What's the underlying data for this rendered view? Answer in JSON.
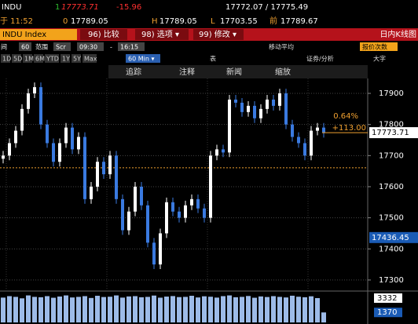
{
  "header": {
    "ticker": "INDU",
    "last_flag": "1",
    "last": "17773.71",
    "change": "-15.96",
    "bid_ask": "17772.07 / 17775.49",
    "time": "于 11:52",
    "open_flag": "0",
    "open": "17789.05",
    "high_label": "H",
    "high": "17789.05",
    "low_label": "L",
    "low": "17703.55",
    "prev_label": "前",
    "prev": "17789.67"
  },
  "menu": {
    "security": "INDU Index",
    "compare": "96) 比较",
    "options": "98) 选项 ▾",
    "modify": "99) 修改 ▾",
    "chart_name": "日内K线图"
  },
  "settings": {
    "interval_label": "间",
    "interval": "60",
    "range_label": "范围",
    "range_type": "Scr",
    "start": "09:30",
    "dash": "-",
    "end": "16:15",
    "moving_avg": "移动平均",
    "tick_count": "报价次数"
  },
  "periods": [
    "1D",
    "5D",
    "1M",
    "6M",
    "YTD",
    "1Y",
    "5Y",
    "Max"
  ],
  "frequency": "60 Min ▾",
  "table": "表",
  "analysis": "证券/分析",
  "large_font": "大字",
  "toolbar": [
    "追踪",
    "注释",
    "新闻",
    "缩放"
  ],
  "chart_data": {
    "type": "candlestick",
    "open": [
      17690,
      17700,
      17740,
      17780,
      17850,
      17900,
      17920,
      17800,
      17740,
      17680,
      17740,
      17790,
      17720,
      17760,
      17560,
      17600,
      17680,
      17640,
      17700,
      17560,
      17460,
      17520,
      17600,
      17540,
      17420,
      17350,
      17450,
      17550,
      17520,
      17500,
      17540,
      17560,
      17530,
      17500,
      17700,
      17720,
      17710,
      17880,
      17870,
      17840,
      17860,
      17820,
      17850,
      17880,
      17860,
      17900,
      17800,
      17760,
      17740,
      17700,
      17780,
      17790
    ],
    "high": [
      17715,
      17755,
      17795,
      17865,
      17915,
      17935,
      17935,
      17815,
      17755,
      17755,
      17805,
      17805,
      17775,
      17775,
      17615,
      17695,
      17695,
      17715,
      17715,
      17575,
      17535,
      17615,
      17615,
      17555,
      17435,
      17465,
      17565,
      17565,
      17535,
      17555,
      17575,
      17575,
      17545,
      17715,
      17735,
      17735,
      17895,
      17895,
      17885,
      17875,
      17875,
      17865,
      17895,
      17895,
      17915,
      17915,
      17815,
      17775,
      17755,
      17795,
      17805,
      17805
    ],
    "low": [
      17675,
      17685,
      17725,
      17765,
      17835,
      17885,
      17785,
      17725,
      17665,
      17665,
      17725,
      17705,
      17705,
      17545,
      17545,
      17585,
      17625,
      17625,
      17545,
      17445,
      17445,
      17505,
      17525,
      17405,
      17335,
      17335,
      17435,
      17505,
      17485,
      17485,
      17525,
      17515,
      17485,
      17485,
      17685,
      17695,
      17695,
      17855,
      17825,
      17825,
      17805,
      17805,
      17835,
      17845,
      17845,
      17785,
      17745,
      17725,
      17685,
      17685,
      17765,
      17758
    ],
    "close": [
      17700,
      17740,
      17780,
      17850,
      17900,
      17920,
      17800,
      17740,
      17680,
      17740,
      17790,
      17720,
      17760,
      17560,
      17600,
      17680,
      17640,
      17700,
      17560,
      17460,
      17520,
      17600,
      17540,
      17420,
      17350,
      17450,
      17550,
      17520,
      17500,
      17540,
      17560,
      17530,
      17500,
      17700,
      17720,
      17710,
      17880,
      17870,
      17840,
      17860,
      17820,
      17850,
      17880,
      17860,
      17900,
      17800,
      17760,
      17740,
      17700,
      17780,
      17790,
      17773.71
    ],
    "up_color": "#ffffff",
    "down_color": "#3a7ae0",
    "ylim": [
      17267,
      17948
    ],
    "yticks": [
      17300,
      17400,
      17500,
      17600,
      17700,
      17800,
      17900
    ],
    "grid": true,
    "ref_line": {
      "value": 17660.71,
      "color": "#f0a030"
    },
    "change_pct": "0.64%",
    "change_abs": "+113.00",
    "price_labels": [
      17773.71,
      17436.45
    ],
    "volume": {
      "values": [
        3400,
        3600,
        3500,
        3300,
        3700,
        3500,
        3450,
        3600,
        3380,
        3550,
        3700,
        3420,
        3500,
        3600,
        3350,
        3650,
        3480,
        3520,
        3700,
        3400,
        3560,
        3600,
        3450,
        3500,
        3680,
        3390,
        3540,
        3610,
        3470,
        3500,
        3650,
        3420,
        3580,
        3520,
        3400,
        3600,
        3700,
        3450,
        3500,
        3620,
        3380,
        3560,
        3480,
        3600,
        3500,
        3420,
        3660,
        3520,
        3450,
        3580,
        3332,
        1370
      ],
      "ylim": [
        0,
        4190
      ],
      "yticks": [
        3332,
        1370
      ],
      "color": "#9dbbe8"
    }
  }
}
